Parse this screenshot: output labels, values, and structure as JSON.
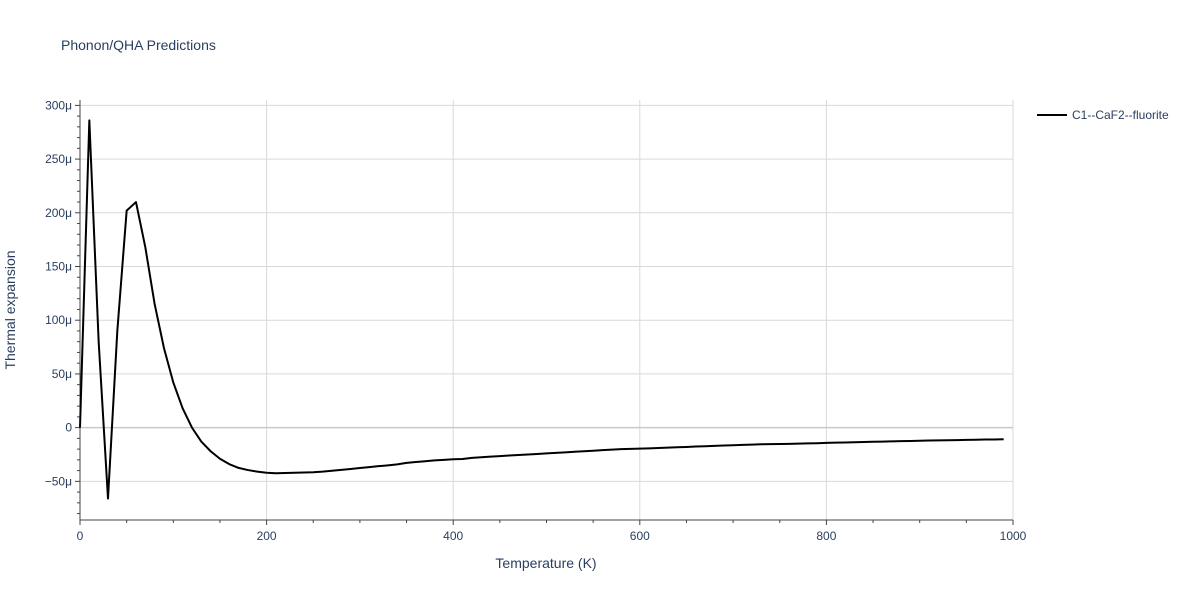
{
  "chart_data": {
    "type": "line",
    "title": "Phonon/QHA Predictions",
    "xlabel": "Temperature (K)",
    "ylabel": "Thermal expansion",
    "xlim": [
      0,
      1000
    ],
    "ylim": [
      -86,
      305
    ],
    "y_unit_suffix": "μ",
    "x_ticks": [
      0,
      200,
      400,
      600,
      800,
      1000
    ],
    "y_ticks": [
      -50,
      0,
      50,
      100,
      150,
      200,
      250,
      300
    ],
    "y_tick_labels": [
      "−50μ",
      "0",
      "50μ",
      "100μ",
      "150μ",
      "200μ",
      "250μ",
      "300μ"
    ],
    "grid": true,
    "legend_position": "top-right",
    "series": [
      {
        "name": "C1--CaF2--fluorite",
        "color": "#000000",
        "x": [
          0,
          10,
          20,
          30,
          40,
          50,
          60,
          70,
          80,
          90,
          100,
          110,
          120,
          130,
          140,
          150,
          160,
          170,
          180,
          190,
          200,
          210,
          220,
          230,
          240,
          250,
          260,
          270,
          280,
          290,
          300,
          310,
          320,
          330,
          340,
          350,
          360,
          370,
          380,
          390,
          400,
          410,
          420,
          430,
          440,
          450,
          460,
          470,
          480,
          490,
          500,
          510,
          520,
          530,
          540,
          550,
          560,
          570,
          580,
          590,
          600,
          610,
          620,
          630,
          640,
          650,
          660,
          670,
          680,
          690,
          700,
          710,
          720,
          730,
          740,
          750,
          760,
          770,
          780,
          790,
          800,
          810,
          820,
          830,
          840,
          850,
          860,
          870,
          880,
          890,
          900,
          910,
          920,
          930,
          940,
          950,
          960,
          970,
          980,
          990
        ],
        "y": [
          0,
          286,
          80,
          -66,
          90,
          202,
          210,
          168,
          115,
          74,
          42,
          18,
          0,
          -13,
          -22,
          -29,
          -34,
          -37.5,
          -39.5,
          -41,
          -42,
          -42.5,
          -42.3,
          -42,
          -41.8,
          -41.6,
          -41,
          -40.2,
          -39.3,
          -38.5,
          -37.6,
          -36.8,
          -35.9,
          -35.1,
          -34.2,
          -32.8,
          -32,
          -31.3,
          -30.5,
          -30,
          -29.5,
          -29.2,
          -28.2,
          -27.6,
          -27,
          -26.5,
          -26,
          -25.5,
          -25,
          -24.5,
          -24,
          -23.5,
          -23,
          -22.5,
          -22,
          -21.5,
          -21,
          -20.5,
          -20,
          -19.8,
          -19.5,
          -19.3,
          -19,
          -18.6,
          -18.3,
          -18,
          -17.6,
          -17.3,
          -17,
          -16.7,
          -16.4,
          -16.1,
          -15.8,
          -15.5,
          -15.4,
          -15.2,
          -15.1,
          -14.9,
          -14.7,
          -14.5,
          -14.2,
          -14,
          -13.8,
          -13.6,
          -13.4,
          -13.2,
          -13,
          -12.8,
          -12.6,
          -12.4,
          -12.2,
          -12,
          -11.9,
          -11.7,
          -11.6,
          -11.4,
          -11.3,
          -11.1,
          -11,
          -10.8
        ]
      }
    ]
  }
}
